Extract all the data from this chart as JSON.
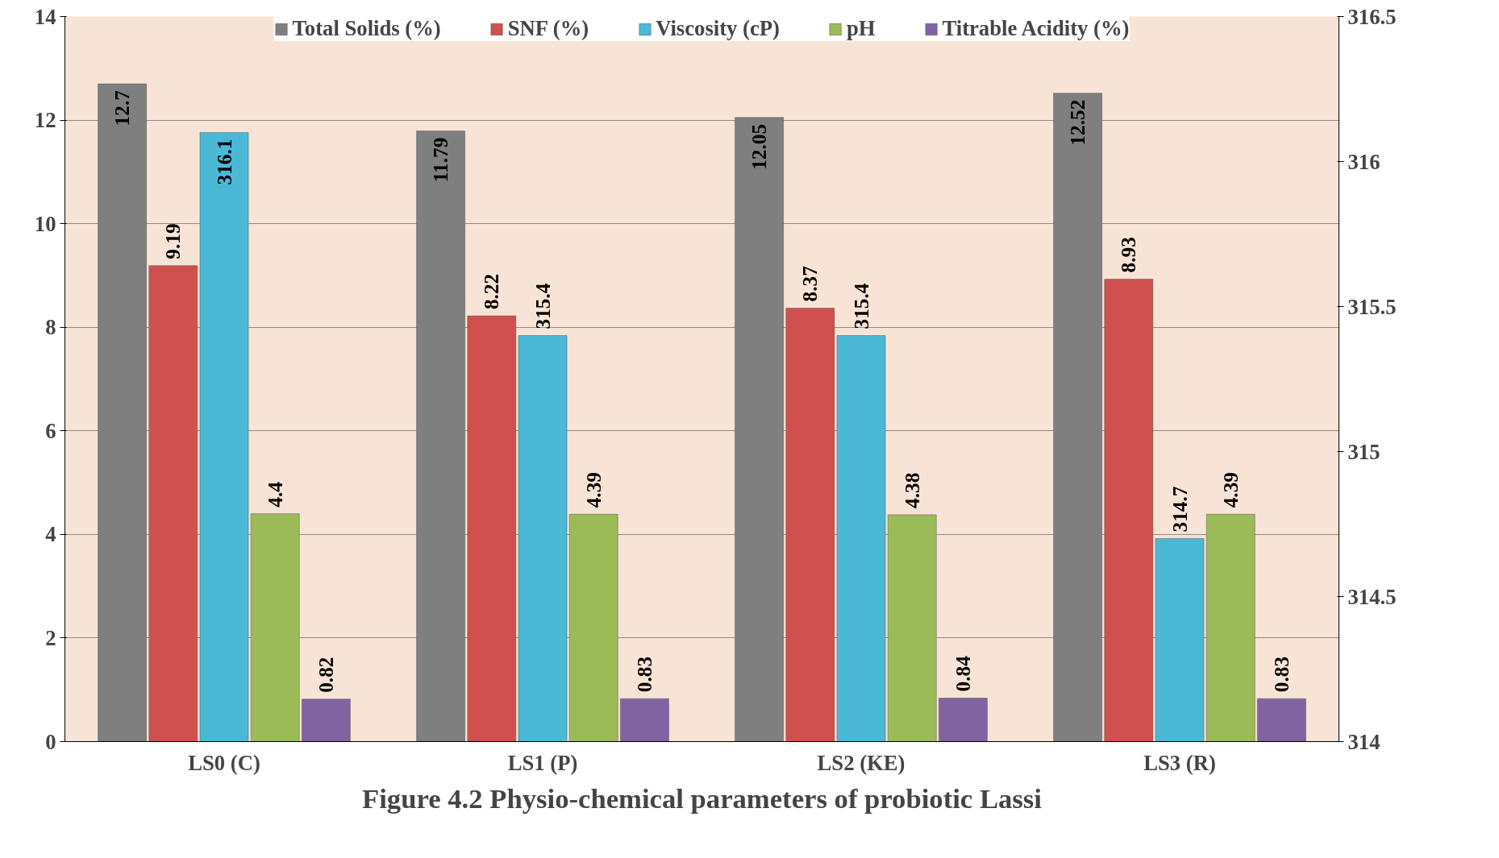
{
  "chart_data": {
    "type": "bar",
    "title": "Figure 4.2 Physio-chemical parameters of probiotic Lassi",
    "categories": [
      "LS0 (C)",
      "LS1 (P)",
      "LS2 (KE)",
      "LS3 (R)"
    ],
    "series": [
      {
        "name": "Total Solids (%)",
        "color": "#7f7f7f",
        "values": [
          12.7,
          11.79,
          12.05,
          12.52
        ]
      },
      {
        "name": "SNF (%)",
        "color": "#d0504d",
        "values": [
          9.19,
          8.22,
          8.37,
          8.93
        ]
      },
      {
        "name": "Viscosity (cP)",
        "color": "#4bb8d6",
        "values": [
          316.1,
          315.4,
          315.4,
          314.7
        ],
        "axis": "y2"
      },
      {
        "name": "pH",
        "color": "#9bbb59",
        "values": [
          4.4,
          4.39,
          4.38,
          4.39
        ]
      },
      {
        "name": "Titrable Acidity (%)",
        "color": "#8064a2",
        "values": [
          0.82,
          0.83,
          0.84,
          0.83
        ]
      }
    ],
    "ylim": [
      0,
      14
    ],
    "yticks": [
      0,
      2,
      4,
      6,
      8,
      10,
      12,
      14
    ],
    "y2lim": [
      314,
      316.5
    ],
    "y2ticks": [
      314,
      314.5,
      315,
      315.5,
      316,
      316.5
    ],
    "grid": "y",
    "legend": "top",
    "data_labels": true
  }
}
